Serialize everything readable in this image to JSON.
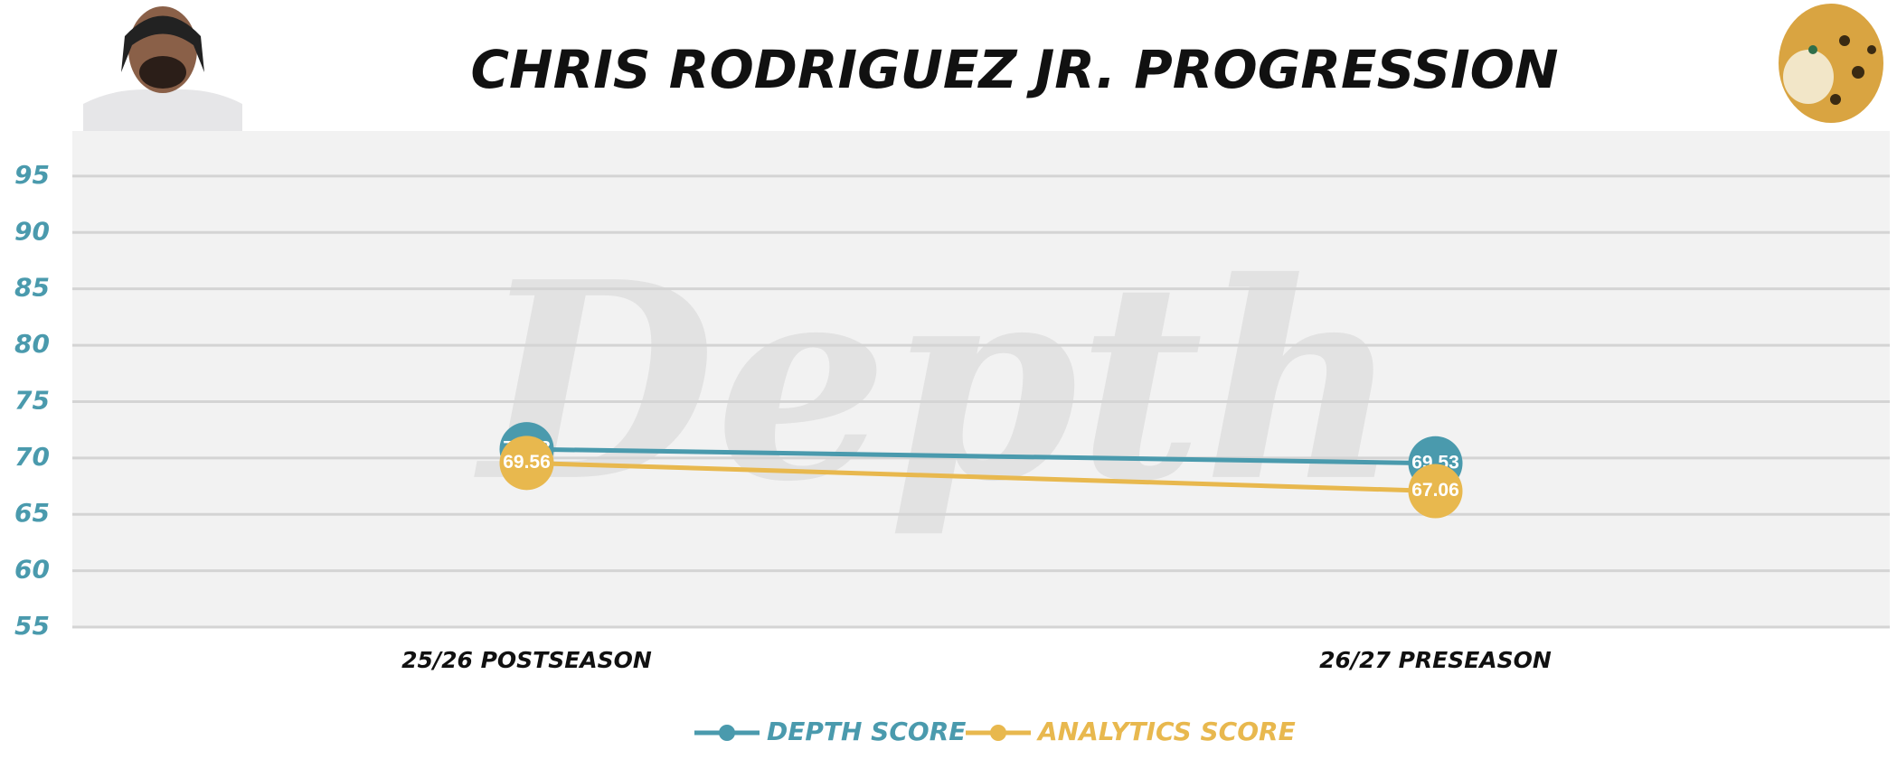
{
  "chart_data": {
    "type": "line",
    "title": "CHRIS RODRIGUEZ JR. PROGRESSION",
    "watermark": "Depth",
    "categories": [
      "25/26 POSTSEASON",
      "26/27 PRESEASON"
    ],
    "series": [
      {
        "name": "DEPTH SCORE",
        "color": "#4a9aad",
        "values": [
          70.78,
          69.53
        ]
      },
      {
        "name": "ANALYTICS SCORE",
        "color": "#e8b84e",
        "values": [
          69.56,
          67.06
        ]
      }
    ],
    "ylim": [
      55,
      99
    ],
    "yticks": [
      55,
      60,
      65,
      70,
      75,
      80,
      85,
      90,
      95
    ],
    "grid": true
  }
}
